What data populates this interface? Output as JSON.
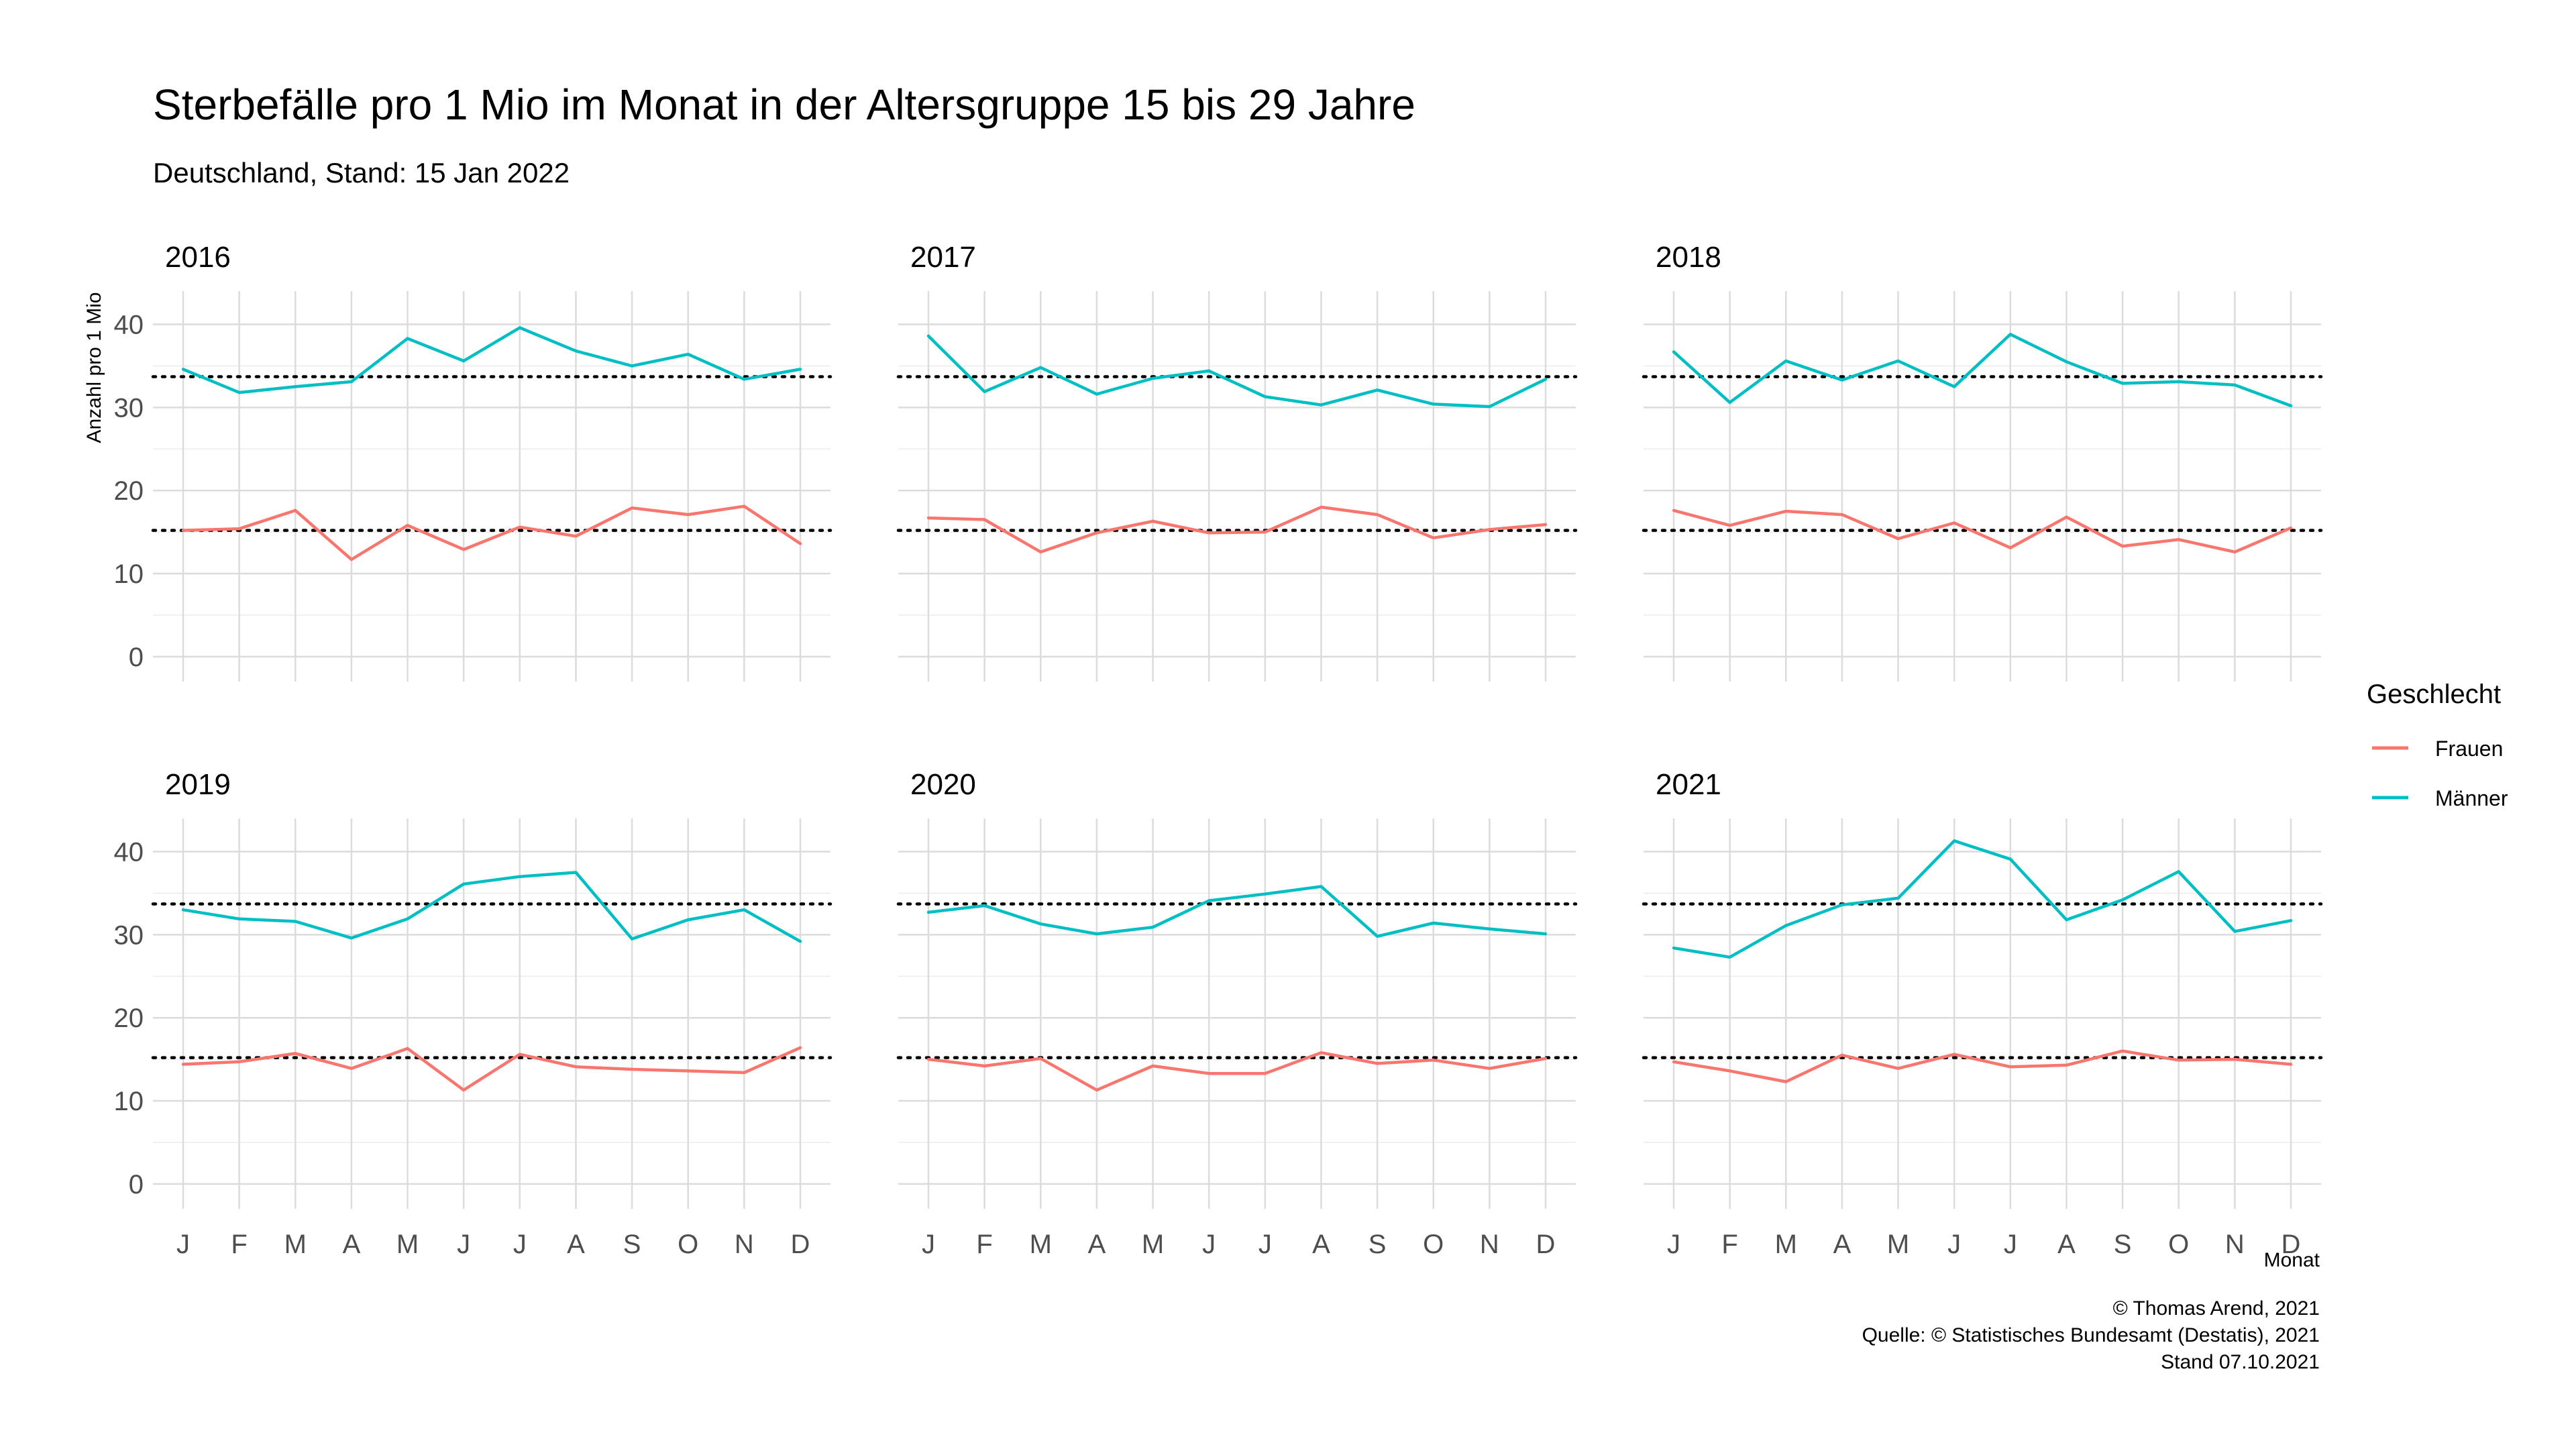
{
  "chart_data": {
    "type": "line",
    "title": "Sterbefälle pro 1 Mio im Monat in der Altersgruppe 15 bis 29 Jahre",
    "subtitle": "Deutschland, Stand: 15 Jan 2022",
    "xlabel": "Monat",
    "ylabel": "Anzahl pro 1 Mio",
    "x": [
      "J",
      "F",
      "M",
      "A",
      "M",
      "J",
      "J",
      "A",
      "S",
      "O",
      "N",
      "D"
    ],
    "yticks": [
      0,
      10,
      20,
      30,
      40
    ],
    "ylim": [
      -3,
      44
    ],
    "grid": true,
    "legend": {
      "title": "Geschlecht",
      "placement": "right",
      "entries": [
        {
          "name": "Frauen",
          "color": "#F8766D"
        },
        {
          "name": "Männer",
          "color": "#00BFC4"
        }
      ]
    },
    "reference_lines": {
      "Frauen": 15.2,
      "Männer": 33.7
    },
    "panels": [
      {
        "label": "2016",
        "series": [
          {
            "name": "Frauen",
            "values": [
              15.2,
              15.4,
              17.6,
              11.7,
              15.8,
              12.9,
              15.6,
              14.5,
              17.9,
              17.1,
              18.1,
              13.6
            ]
          },
          {
            "name": "Männer",
            "values": [
              34.6,
              31.8,
              32.5,
              33.1,
              38.3,
              35.6,
              39.6,
              36.8,
              35.0,
              36.4,
              33.4,
              34.6
            ]
          }
        ]
      },
      {
        "label": "2017",
        "series": [
          {
            "name": "Frauen",
            "values": [
              16.7,
              16.5,
              12.6,
              14.9,
              16.3,
              14.9,
              15.0,
              18.0,
              17.1,
              14.3,
              15.3,
              15.9
            ]
          },
          {
            "name": "Männer",
            "values": [
              38.6,
              31.9,
              34.8,
              31.6,
              33.5,
              34.4,
              31.3,
              30.3,
              32.1,
              30.4,
              30.1,
              33.4
            ]
          }
        ]
      },
      {
        "label": "2018",
        "series": [
          {
            "name": "Frauen",
            "values": [
              17.6,
              15.8,
              17.5,
              17.1,
              14.2,
              16.1,
              13.1,
              16.8,
              13.3,
              14.1,
              12.6,
              15.5
            ]
          },
          {
            "name": "Männer",
            "values": [
              36.7,
              30.6,
              35.6,
              33.3,
              35.6,
              32.5,
              38.8,
              35.5,
              32.9,
              33.1,
              32.7,
              30.2
            ]
          }
        ]
      },
      {
        "label": "2019",
        "series": [
          {
            "name": "Frauen",
            "values": [
              14.4,
              14.7,
              15.7,
              13.9,
              16.3,
              11.3,
              15.6,
              14.1,
              13.8,
              13.6,
              13.4,
              16.4
            ]
          },
          {
            "name": "Männer",
            "values": [
              33.0,
              31.9,
              31.6,
              29.6,
              31.9,
              36.1,
              37.0,
              37.5,
              29.5,
              31.8,
              33.0,
              29.2
            ]
          }
        ]
      },
      {
        "label": "2020",
        "series": [
          {
            "name": "Frauen",
            "values": [
              15.0,
              14.2,
              15.1,
              11.3,
              14.2,
              13.3,
              13.3,
              15.8,
              14.5,
              14.9,
              13.9,
              15.1
            ]
          },
          {
            "name": "Männer",
            "values": [
              32.7,
              33.5,
              31.3,
              30.1,
              30.9,
              34.1,
              34.9,
              35.8,
              29.8,
              31.4,
              30.7,
              30.1
            ]
          }
        ]
      },
      {
        "label": "2021",
        "series": [
          {
            "name": "Frauen",
            "values": [
              14.7,
              13.6,
              12.3,
              15.5,
              13.9,
              15.6,
              14.1,
              14.3,
              16.0,
              14.9,
              15.0,
              14.4
            ]
          },
          {
            "name": "Männer",
            "values": [
              28.4,
              27.3,
              31.1,
              33.6,
              34.4,
              41.3,
              39.1,
              31.8,
              34.2,
              37.6,
              30.4,
              31.7
            ]
          }
        ]
      }
    ]
  },
  "caption": {
    "lines": [
      "© Thomas Arend, 2021",
      "Quelle: © Statistisches Bundesamt (Destatis), 2021",
      "Stand 07.10.2021"
    ]
  }
}
